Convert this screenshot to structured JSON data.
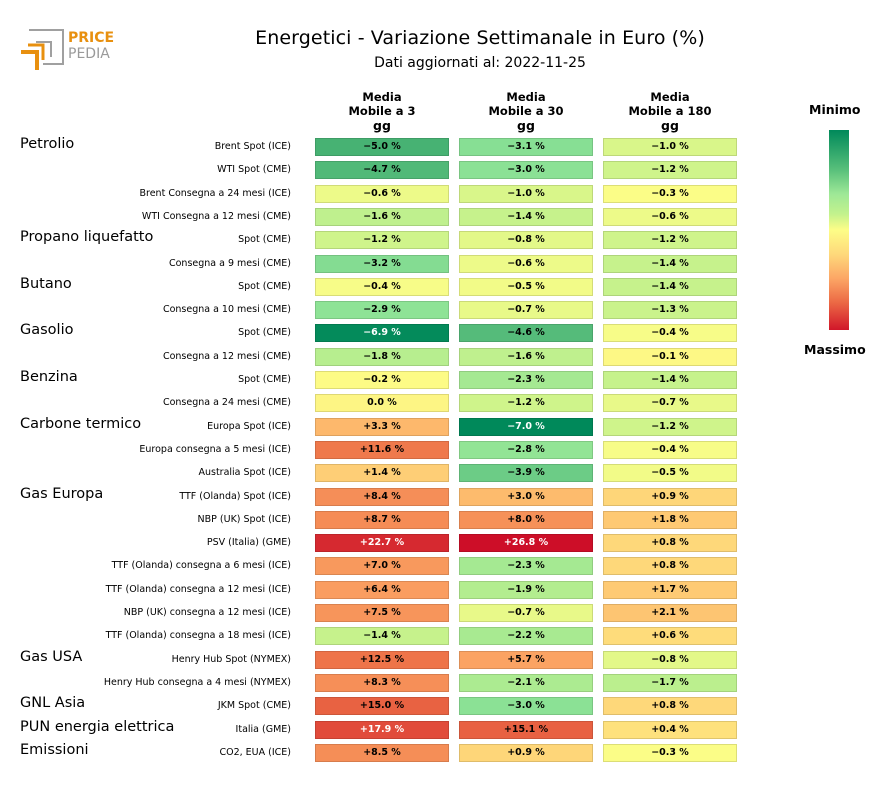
{
  "brand": {
    "line1": "PRICE",
    "line2": "PEDIA",
    "accent": "#e8900f",
    "grey": "#9a9a9a"
  },
  "header": {
    "title": "Energetici - Variazione Settimanale in Euro (%)",
    "subtitle": "Dati aggiornati al: 2022-11-25"
  },
  "chart_data": {
    "type": "heatmap",
    "title": "Energetici - Variazione Settimanale in Euro (%)",
    "subtitle": "Dati aggiornati al: 2022-11-25",
    "columns": [
      "Media Mobile a 3 gg",
      "Media Mobile a 30 gg",
      "Media Mobile a 180 gg"
    ],
    "column_lines": [
      [
        "Media",
        "Mobile a 3",
        "gg"
      ],
      [
        "Media",
        "Mobile a 30",
        "gg"
      ],
      [
        "Media",
        "Mobile a 180",
        "gg"
      ]
    ],
    "colorbar": {
      "top_label": "Minimo",
      "bottom_label": "Massimo",
      "colormap": "RdYlGn_r",
      "range": [
        -7.0,
        26.8
      ]
    },
    "unit": "%",
    "groups": [
      {
        "name": "Petrolio",
        "first_row": 0
      },
      {
        "name": "Propano liquefatto",
        "first_row": 4
      },
      {
        "name": "Butano",
        "first_row": 6
      },
      {
        "name": "Gasolio",
        "first_row": 8
      },
      {
        "name": "Benzina",
        "first_row": 10
      },
      {
        "name": "Carbone termico",
        "first_row": 12
      },
      {
        "name": "Gas Europa",
        "first_row": 15
      },
      {
        "name": "Gas USA",
        "first_row": 22
      },
      {
        "name": "GNL Asia",
        "first_row": 24
      },
      {
        "name": "PUN energia elettrica",
        "first_row": 25
      },
      {
        "name": "Emissioni",
        "first_row": 26
      }
    ],
    "rows": [
      {
        "label": "Brent Spot (ICE)",
        "values": [
          -5.0,
          -3.1,
          -1.0
        ],
        "text": [
          "−5.0 %",
          "−3.1 %",
          "−1.0 %"
        ]
      },
      {
        "label": "WTI Spot (CME)",
        "values": [
          -4.7,
          -3.0,
          -1.2
        ],
        "text": [
          "−4.7 %",
          "−3.0 %",
          "−1.2 %"
        ]
      },
      {
        "label": "Brent Consegna a 24 mesi (ICE)",
        "values": [
          -0.6,
          -1.0,
          -0.3
        ],
        "text": [
          "−0.6 %",
          "−1.0 %",
          "−0.3 %"
        ]
      },
      {
        "label": "WTI Consegna a 12 mesi (CME)",
        "values": [
          -1.6,
          -1.4,
          -0.6
        ],
        "text": [
          "−1.6 %",
          "−1.4 %",
          "−0.6 %"
        ]
      },
      {
        "label": "Spot (CME)",
        "values": [
          -1.2,
          -0.8,
          -1.2
        ],
        "text": [
          "−1.2 %",
          "−0.8 %",
          "−1.2 %"
        ]
      },
      {
        "label": "Consegna a 9 mesi (CME)",
        "values": [
          -3.2,
          -0.6,
          -1.4
        ],
        "text": [
          "−3.2 %",
          "−0.6 %",
          "−1.4 %"
        ]
      },
      {
        "label": "Spot (CME)",
        "values": [
          -0.4,
          -0.5,
          -1.4
        ],
        "text": [
          "−0.4 %",
          "−0.5 %",
          "−1.4 %"
        ]
      },
      {
        "label": "Consegna a 10 mesi (CME)",
        "values": [
          -2.9,
          -0.7,
          -1.3
        ],
        "text": [
          "−2.9 %",
          "−0.7 %",
          "−1.3 %"
        ]
      },
      {
        "label": "Spot (CME)",
        "values": [
          -6.9,
          -4.6,
          -0.4
        ],
        "text": [
          "−6.9 %",
          "−4.6 %",
          "−0.4 %"
        ]
      },
      {
        "label": "Consegna a 12 mesi (CME)",
        "values": [
          -1.8,
          -1.6,
          -0.1
        ],
        "text": [
          "−1.8 %",
          "−1.6 %",
          "−0.1 %"
        ]
      },
      {
        "label": "Spot (CME)",
        "values": [
          -0.2,
          -2.3,
          -1.4
        ],
        "text": [
          "−0.2 %",
          "−2.3 %",
          "−1.4 %"
        ]
      },
      {
        "label": "Consegna a 24 mesi (CME)",
        "values": [
          0.0,
          -1.2,
          -0.7
        ],
        "text": [
          "0.0 %",
          "−1.2 %",
          "−0.7 %"
        ]
      },
      {
        "label": "Europa Spot (ICE)",
        "values": [
          3.3,
          -7.0,
          -1.2
        ],
        "text": [
          "+3.3 %",
          "−7.0 %",
          "−1.2 %"
        ]
      },
      {
        "label": "Europa consegna a 5 mesi (ICE)",
        "values": [
          11.6,
          -2.8,
          -0.4
        ],
        "text": [
          "+11.6 %",
          "−2.8 %",
          "−0.4 %"
        ]
      },
      {
        "label": "Australia Spot (ICE)",
        "values": [
          1.4,
          -3.9,
          -0.5
        ],
        "text": [
          "+1.4 %",
          "−3.9 %",
          "−0.5 %"
        ]
      },
      {
        "label": "TTF (Olanda) Spot (ICE)",
        "values": [
          8.4,
          3.0,
          0.9
        ],
        "text": [
          "+8.4 %",
          "+3.0 %",
          "+0.9 %"
        ]
      },
      {
        "label": "NBP (UK) Spot (ICE)",
        "values": [
          8.7,
          8.0,
          1.8
        ],
        "text": [
          "+8.7 %",
          "+8.0 %",
          "+1.8 %"
        ]
      },
      {
        "label": "PSV (Italia) (GME)",
        "values": [
          22.7,
          26.8,
          0.8
        ],
        "text": [
          "+22.7 %",
          "+26.8 %",
          "+0.8 %"
        ]
      },
      {
        "label": "TTF (Olanda) consegna a 6 mesi (ICE)",
        "values": [
          7.0,
          -2.3,
          0.8
        ],
        "text": [
          "+7.0 %",
          "−2.3 %",
          "+0.8 %"
        ]
      },
      {
        "label": "TTF (Olanda) consegna a 12 mesi (ICE)",
        "values": [
          6.4,
          -1.9,
          1.7
        ],
        "text": [
          "+6.4 %",
          "−1.9 %",
          "+1.7 %"
        ]
      },
      {
        "label": "NBP (UK) consegna a 12 mesi (ICE)",
        "values": [
          7.5,
          -0.7,
          2.1
        ],
        "text": [
          "+7.5 %",
          "−0.7 %",
          "+2.1 %"
        ]
      },
      {
        "label": "TTF (Olanda) consegna a 18 mesi (ICE)",
        "values": [
          -1.4,
          -2.2,
          0.6
        ],
        "text": [
          "−1.4 %",
          "−2.2 %",
          "+0.6 %"
        ]
      },
      {
        "label": "Henry Hub Spot (NYMEX)",
        "values": [
          12.5,
          5.7,
          -0.8
        ],
        "text": [
          "+12.5 %",
          "+5.7 %",
          "−0.8 %"
        ]
      },
      {
        "label": "Henry Hub consegna a 4 mesi (NYMEX)",
        "values": [
          8.3,
          -2.1,
          -1.7
        ],
        "text": [
          "+8.3 %",
          "−2.1 %",
          "−1.7 %"
        ]
      },
      {
        "label": "JKM Spot (CME)",
        "values": [
          15.0,
          -3.0,
          0.8
        ],
        "text": [
          "+15.0 %",
          "−3.0 %",
          "+0.8 %"
        ]
      },
      {
        "label": "Italia (GME)",
        "values": [
          17.9,
          15.1,
          0.4
        ],
        "text": [
          "+17.9 %",
          "+15.1 %",
          "+0.4 %"
        ]
      },
      {
        "label": "CO2, EUA (ICE)",
        "values": [
          8.5,
          0.9,
          -0.3
        ],
        "text": [
          "+8.5 %",
          "+0.9 %",
          "−0.3 %"
        ]
      }
    ]
  }
}
